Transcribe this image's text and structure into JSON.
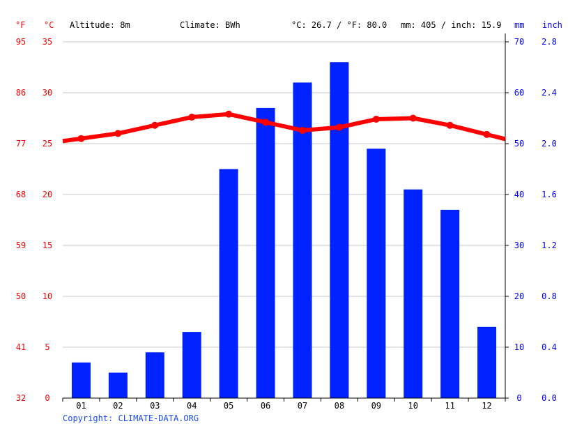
{
  "header": {
    "unit_f": "°F",
    "unit_c": "°C",
    "altitude": "Altitude: 8m",
    "climate": "Climate: BWh",
    "temp_summary": "°C: 26.7 / °F: 80.0",
    "precip_summary": "mm: 405 / inch: 15.9",
    "unit_mm": "mm",
    "unit_inch": "inch"
  },
  "footer": {
    "copyright": "Copyright: CLIMATE-DATA.ORG"
  },
  "colors": {
    "temperature_line": "#ff0000",
    "precipitation_bar": "#0022ff",
    "grid": "#c8c8c8",
    "left_labels": "#ff0000",
    "right_labels": "#0000ff"
  },
  "chart_data": {
    "type": "bar",
    "categories": [
      "01",
      "02",
      "03",
      "04",
      "05",
      "06",
      "07",
      "08",
      "09",
      "10",
      "11",
      "12"
    ],
    "series": [
      {
        "kind": "bar",
        "unit": "mm",
        "axis": "right",
        "values": [
          7,
          5,
          9,
          13,
          45,
          57,
          62,
          66,
          49,
          41,
          37,
          14
        ]
      },
      {
        "kind": "line",
        "unit": "°C",
        "axis": "left",
        "values": [
          25.5,
          26.0,
          26.8,
          27.6,
          27.9,
          27.1,
          26.3,
          26.6,
          27.4,
          27.5,
          26.8,
          25.9
        ]
      }
    ],
    "left_axis_c": {
      "ylim": [
        0,
        35
      ],
      "ticks": [
        "0",
        "5",
        "10",
        "15",
        "20",
        "25",
        "30",
        "35"
      ]
    },
    "left_axis_f": {
      "ticks": [
        "32",
        "41",
        "50",
        "59",
        "68",
        "77",
        "86",
        "95"
      ]
    },
    "right_axis_mm": {
      "ylim": [
        0,
        70
      ],
      "ticks": [
        "0",
        "10",
        "20",
        "30",
        "40",
        "50",
        "60",
        "70"
      ]
    },
    "right_axis_inch": {
      "ticks": [
        "0.0",
        "0.4",
        "0.8",
        "1.2",
        "1.6",
        "2.0",
        "2.4",
        "2.8"
      ]
    },
    "grid": true
  }
}
